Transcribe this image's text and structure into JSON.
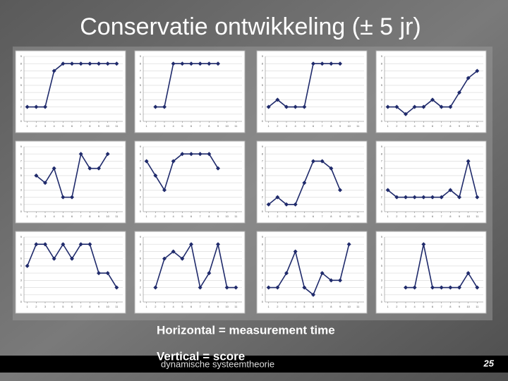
{
  "title": "Conservatie ontwikkeling (± 5 jr)",
  "notes": [
    "Horizontal = measurement time",
    "Vertical = score"
  ],
  "footer": "dynamische systeemtheorie",
  "page_number": "25",
  "chart_data": [
    {
      "type": "line",
      "x": [
        1,
        2,
        3,
        4,
        5,
        6,
        7,
        8,
        9,
        10,
        11
      ],
      "values": [
        2,
        2,
        2,
        7,
        8,
        8,
        8,
        8,
        8,
        8,
        8
      ],
      "color": "#1f2a6b",
      "xlim": [
        0,
        12
      ],
      "xticks": [
        1,
        2,
        3,
        4,
        5,
        6,
        7,
        8,
        9,
        10,
        11
      ],
      "ylim": [
        0,
        9
      ],
      "yticks": [
        0,
        1,
        2,
        3,
        4,
        5,
        6,
        7,
        8,
        9
      ],
      "grid": true
    },
    {
      "type": "line",
      "x": [
        1,
        2,
        3,
        4,
        5,
        6,
        7,
        8,
        9,
        10,
        11
      ],
      "values": [
        null,
        2,
        2,
        8,
        8,
        8,
        8,
        8,
        8,
        null,
        null
      ],
      "color": "#1f2a6b",
      "xlim": [
        0,
        12
      ],
      "xticks": [
        1,
        2,
        3,
        4,
        5,
        6,
        7,
        8,
        9,
        10,
        11
      ],
      "ylim": [
        0,
        9
      ],
      "yticks": [
        0,
        1,
        2,
        3,
        4,
        5,
        6,
        7,
        8,
        9
      ],
      "grid": true
    },
    {
      "type": "line",
      "x": [
        1,
        2,
        3,
        4,
        5,
        6,
        7,
        8,
        9,
        10,
        11
      ],
      "values": [
        2,
        3,
        2,
        2,
        2,
        8,
        8,
        8,
        8,
        null,
        null
      ],
      "color": "#1f2a6b",
      "xlim": [
        0,
        12
      ],
      "xticks": [
        1,
        2,
        3,
        4,
        5,
        6,
        7,
        8,
        9,
        10,
        11
      ],
      "ylim": [
        0,
        9
      ],
      "yticks": [
        0,
        1,
        2,
        3,
        4,
        5,
        6,
        7,
        8,
        9
      ],
      "grid": true
    },
    {
      "type": "line",
      "x": [
        1,
        2,
        3,
        4,
        5,
        6,
        7,
        8,
        9,
        10,
        11
      ],
      "values": [
        2,
        2,
        1,
        2,
        2,
        3,
        2,
        2,
        4,
        6,
        7
      ],
      "color": "#1f2a6b",
      "xlim": [
        0,
        12
      ],
      "xticks": [
        1,
        2,
        3,
        4,
        5,
        6,
        7,
        8,
        9,
        10,
        11
      ],
      "ylim": [
        0,
        9
      ],
      "yticks": [
        0,
        1,
        2,
        3,
        4,
        5,
        6,
        7,
        8,
        9
      ],
      "grid": true
    },
    {
      "type": "line",
      "x": [
        1,
        2,
        3,
        4,
        5,
        6,
        7,
        8,
        9,
        10,
        11
      ],
      "values": [
        null,
        5,
        4,
        6,
        2,
        2,
        8,
        6,
        6,
        8,
        null
      ],
      "color": "#1f2a6b",
      "xlim": [
        0,
        12
      ],
      "xticks": [
        1,
        2,
        3,
        4,
        5,
        6,
        7,
        8,
        9,
        10,
        11
      ],
      "ylim": [
        0,
        9
      ],
      "yticks": [
        0,
        1,
        2,
        3,
        4,
        5,
        6,
        7,
        8,
        9
      ],
      "grid": true
    },
    {
      "type": "line",
      "x": [
        1,
        2,
        3,
        4,
        5,
        6,
        7,
        8,
        9,
        10,
        11
      ],
      "values": [
        7,
        5,
        3,
        7,
        8,
        8,
        8,
        8,
        6,
        null,
        null
      ],
      "color": "#1f2a6b",
      "xlim": [
        0,
        12
      ],
      "xticks": [
        1,
        2,
        3,
        4,
        5,
        6,
        7,
        8,
        9,
        10,
        11
      ],
      "ylim": [
        0,
        9
      ],
      "yticks": [
        0,
        1,
        2,
        3,
        4,
        5,
        6,
        7,
        8,
        9
      ],
      "grid": true
    },
    {
      "type": "line",
      "x": [
        1,
        2,
        3,
        4,
        5,
        6,
        7,
        8,
        9,
        10,
        11
      ],
      "values": [
        1,
        2,
        1,
        1,
        4,
        7,
        7,
        6,
        3,
        null,
        null
      ],
      "color": "#1f2a6b",
      "xlim": [
        0,
        12
      ],
      "xticks": [
        1,
        2,
        3,
        4,
        5,
        6,
        7,
        8,
        9,
        10,
        11
      ],
      "ylim": [
        0,
        9
      ],
      "yticks": [
        0,
        1,
        2,
        3,
        4,
        5,
        6,
        7,
        8,
        9
      ],
      "grid": true
    },
    {
      "type": "line",
      "x": [
        1,
        2,
        3,
        4,
        5,
        6,
        7,
        8,
        9,
        10,
        11
      ],
      "values": [
        3,
        2,
        2,
        2,
        2,
        2,
        2,
        3,
        2,
        7,
        2
      ],
      "color": "#1f2a6b",
      "xlim": [
        0,
        12
      ],
      "xticks": [
        1,
        2,
        3,
        4,
        5,
        6,
        7,
        8,
        9,
        10,
        11
      ],
      "ylim": [
        0,
        9
      ],
      "yticks": [
        0,
        1,
        2,
        3,
        4,
        5,
        6,
        7,
        8,
        9
      ],
      "grid": true
    },
    {
      "type": "line",
      "x": [
        1,
        2,
        3,
        4,
        5,
        6,
        7,
        8,
        9,
        10,
        11
      ],
      "values": [
        5,
        8,
        8,
        6,
        8,
        6,
        8,
        8,
        4,
        4,
        2
      ],
      "color": "#1f2a6b",
      "xlim": [
        0,
        12
      ],
      "xticks": [
        1,
        2,
        3,
        4,
        5,
        6,
        7,
        8,
        9,
        10,
        11
      ],
      "ylim": [
        0,
        9
      ],
      "yticks": [
        0,
        1,
        2,
        3,
        4,
        5,
        6,
        7,
        8,
        9
      ],
      "grid": true
    },
    {
      "type": "line",
      "x": [
        1,
        2,
        3,
        4,
        5,
        6,
        7,
        8,
        9,
        10,
        11
      ],
      "values": [
        null,
        2,
        6,
        7,
        6,
        8,
        2,
        4,
        8,
        2,
        2
      ],
      "color": "#1f2a6b",
      "xlim": [
        0,
        12
      ],
      "xticks": [
        1,
        2,
        3,
        4,
        5,
        6,
        7,
        8,
        9,
        10,
        11
      ],
      "ylim": [
        0,
        9
      ],
      "yticks": [
        0,
        1,
        2,
        3,
        4,
        5,
        6,
        7,
        8,
        9
      ],
      "grid": true
    },
    {
      "type": "line",
      "x": [
        1,
        2,
        3,
        4,
        5,
        6,
        7,
        8,
        9,
        10,
        11
      ],
      "values": [
        2,
        2,
        4,
        7,
        2,
        1,
        4,
        3,
        3,
        8,
        null
      ],
      "color": "#1f2a6b",
      "xlim": [
        0,
        12
      ],
      "xticks": [
        1,
        2,
        3,
        4,
        5,
        6,
        7,
        8,
        9,
        10,
        11
      ],
      "ylim": [
        0,
        9
      ],
      "yticks": [
        0,
        1,
        2,
        3,
        4,
        5,
        6,
        7,
        8,
        9
      ],
      "grid": true
    },
    {
      "type": "line",
      "x": [
        1,
        2,
        3,
        4,
        5,
        6,
        7,
        8,
        9,
        10,
        11
      ],
      "values": [
        null,
        null,
        2,
        2,
        8,
        2,
        2,
        2,
        2,
        4,
        2
      ],
      "color": "#1f2a6b",
      "xlim": [
        0,
        12
      ],
      "xticks": [
        1,
        2,
        3,
        4,
        5,
        6,
        7,
        8,
        9,
        10,
        11
      ],
      "ylim": [
        0,
        9
      ],
      "yticks": [
        0,
        1,
        2,
        3,
        4,
        5,
        6,
        7,
        8,
        9
      ],
      "grid": true
    }
  ]
}
